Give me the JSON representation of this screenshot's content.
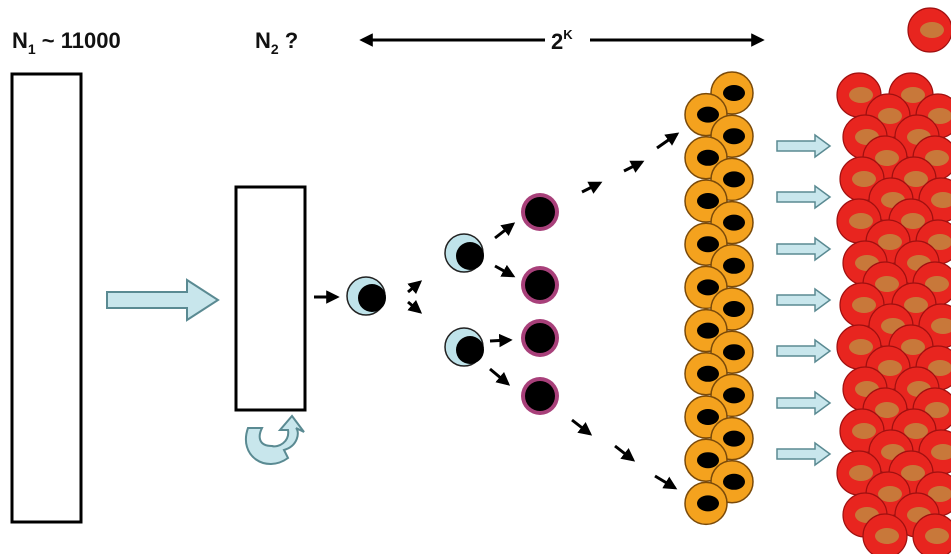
{
  "labels": {
    "n1_base": "N",
    "n1_sub": "1",
    "n1_rest": " ~ 11000",
    "n2_base": "N",
    "n2_sub": "2",
    "n2_rest": " ?",
    "span_base": "2",
    "span_sup": "K"
  },
  "colors": {
    "pale_arrow": "#c8e6ec",
    "stem_cell": "#bfe3ea",
    "progenitor_ring": "#a8407a",
    "orange_cell": "#f4a21e",
    "red_cell": "#e8251f",
    "red_cell_nucleus": "#c8783a",
    "nucleus": "#000000"
  },
  "icons": {
    "feedback_arrow": "curved-loop-arrow-icon",
    "flow_arrow": "block-arrow-icon"
  }
}
